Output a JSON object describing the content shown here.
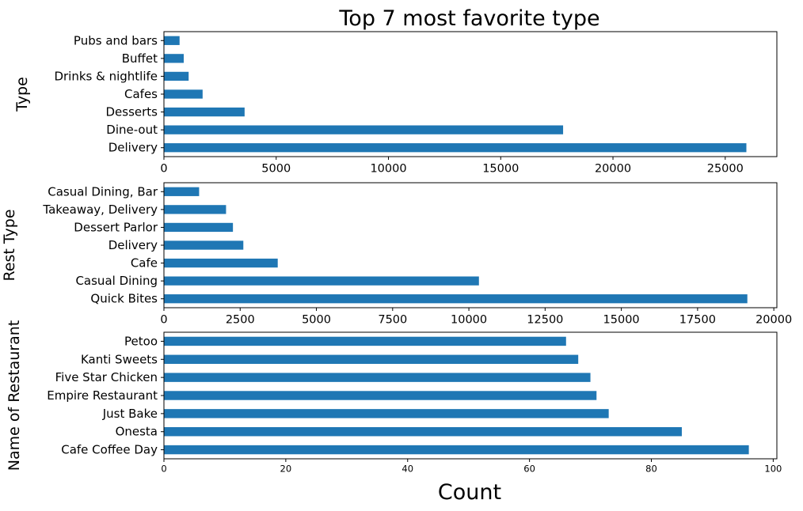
{
  "chart_data": [
    {
      "type": "bar",
      "orientation": "horizontal",
      "title": "Top 7 most favorite type",
      "xlabel": "",
      "ylabel": "Type",
      "categories": [
        "Delivery",
        "Dine-out",
        "Desserts",
        "Cafes",
        "Drinks & nightlife",
        "Buffet",
        "Pubs and bars"
      ],
      "values": [
        25942,
        17779,
        3593,
        1723,
        1101,
        882,
        697
      ],
      "xlim": [
        0,
        27300
      ],
      "xticks": [
        0,
        5000,
        10000,
        15000,
        20000,
        25000
      ],
      "bar_color": "#1f77b4",
      "grid": false
    },
    {
      "type": "bar",
      "orientation": "horizontal",
      "title": "",
      "xlabel": "",
      "ylabel": "Rest Type",
      "categories": [
        "Quick Bites",
        "Casual Dining",
        "Cafe",
        "Delivery",
        "Dessert Parlor",
        "Takeaway, Delivery",
        "Casual Dining, Bar"
      ],
      "values": [
        19132,
        10330,
        3732,
        2604,
        2263,
        2037,
        1154
      ],
      "xlim": [
        0,
        20100
      ],
      "xticks": [
        0,
        2500,
        5000,
        7500,
        10000,
        12500,
        15000,
        17500,
        20000
      ],
      "bar_color": "#1f77b4",
      "grid": false
    },
    {
      "type": "bar",
      "orientation": "horizontal",
      "title": "",
      "xlabel": "Count",
      "ylabel": "Name of Restaurant",
      "categories": [
        "Cafe Coffee Day",
        "Onesta",
        "Just Bake",
        "Empire Restaurant",
        "Five Star Chicken",
        "Kanti Sweets",
        "Petoo"
      ],
      "values": [
        96,
        85,
        73,
        71,
        70,
        68,
        66
      ],
      "xlim": [
        0,
        100.6
      ],
      "xticks": [
        0,
        20,
        40,
        60,
        80,
        100
      ],
      "bar_color": "#1f77b4",
      "grid": false
    }
  ]
}
